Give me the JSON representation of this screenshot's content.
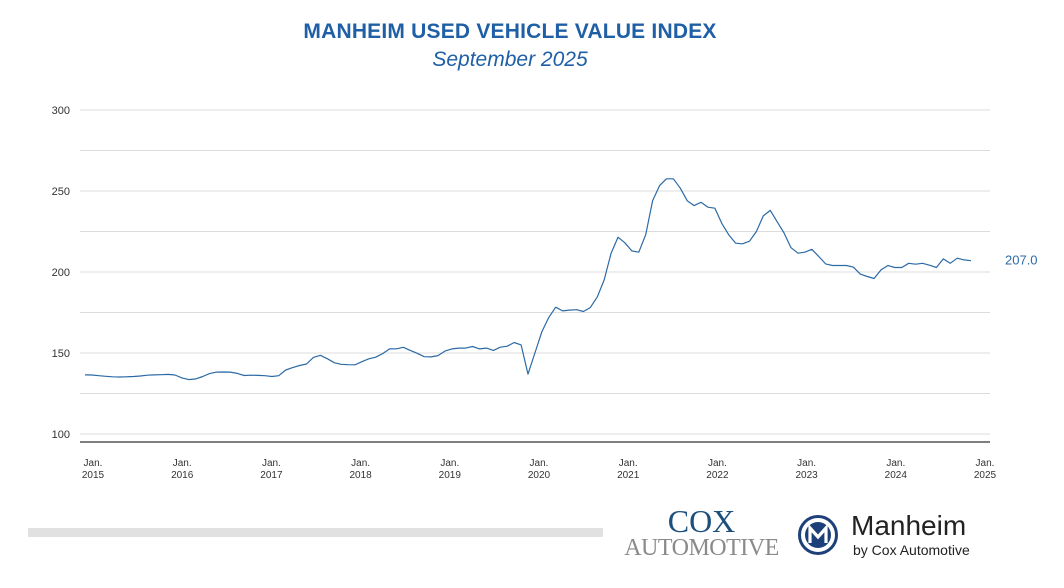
{
  "header": {
    "title": "MANHEIM USED VEHICLE VALUE INDEX",
    "subtitle": "September 2025"
  },
  "chart_data": {
    "type": "line",
    "title": "MANHEIM USED VEHICLE VALUE INDEX",
    "subtitle": "September 2025",
    "xlabel": "",
    "ylabel": "",
    "ylim": [
      100,
      300
    ],
    "yticks": [
      "100",
      "150",
      "200",
      "250",
      "300"
    ],
    "xtick_labels": [
      [
        "Jan.",
        "2015"
      ],
      [
        "Jan.",
        "2016"
      ],
      [
        "Jan.",
        "2017"
      ],
      [
        "Jan.",
        "2018"
      ],
      [
        "Jan.",
        "2019"
      ],
      [
        "Jan.",
        "2020"
      ],
      [
        "Jan.",
        "2021"
      ],
      [
        "Jan.",
        "2022"
      ],
      [
        "Jan.",
        "2023"
      ],
      [
        "Jan.",
        "2024"
      ],
      [
        "Jan.",
        "2025"
      ]
    ],
    "x_start": "Jan 2015",
    "x_end": "Sep 2025",
    "frequency": "monthly",
    "grid": true,
    "line_color": "#2c6aa6",
    "end_label": "207.0",
    "values": [
      136.5,
      136.4,
      136,
      135.6,
      135.3,
      135.2,
      135.3,
      135.5,
      135.8,
      136.3,
      136.5,
      136.6,
      136.8,
      136.4,
      134.6,
      133.6,
      134,
      135.5,
      137.3,
      138.2,
      138.3,
      138.2,
      137.4,
      136.1,
      136.3,
      136.2,
      136,
      135.5,
      136,
      139.5,
      141,
      142.3,
      143.2,
      147.3,
      148.6,
      146.5,
      144,
      143,
      142.8,
      142.7,
      144.6,
      146.4,
      147.4,
      149.6,
      152.5,
      152.6,
      153.5,
      151.6,
      149.8,
      147.7,
      147.6,
      148.4,
      151.2,
      152.5,
      153,
      153,
      154,
      152.5,
      153,
      151.6,
      153.6,
      154.2,
      156.5,
      155,
      137,
      150,
      163,
      172,
      178.3,
      176,
      176.5,
      176.7,
      175.6,
      178,
      184.5,
      195,
      211.6,
      221.5,
      218,
      213,
      212.2,
      223,
      244,
      253.3,
      257.5,
      257.5,
      251.7,
      244,
      241,
      243,
      240,
      239.4,
      230,
      223,
      217.8,
      217.4,
      219,
      225,
      234.6,
      238,
      231,
      224,
      215,
      211.6,
      212.2,
      214,
      209.6,
      205,
      204,
      204,
      204,
      203,
      198.7,
      197.2,
      196,
      201.3,
      204,
      202.8,
      202.8,
      205.4,
      204.8,
      205.4,
      204.2,
      202.8,
      208.1,
      205.4,
      208.5,
      207.5,
      207.0
    ]
  },
  "footer": {
    "cox_line1": "COX",
    "cox_line2": "AUTOMOTIVE",
    "manheim_name": "Manheim",
    "manheim_by": "by Cox Automotive",
    "manheim_mark": "M"
  }
}
